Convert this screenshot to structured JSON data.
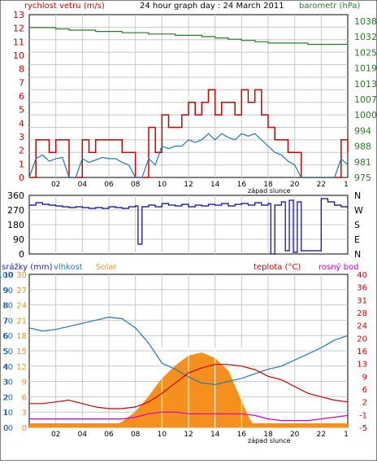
{
  "title": "24 hour graph day : 24 March 2011",
  "colors": {
    "wind": "#cc0000",
    "wind_avg": "#1e78b4",
    "baro": "#2a7a2a",
    "dir": "#0000aa",
    "humidity": "#1e78b4",
    "solar": "#f5901e",
    "temp": "#cc0000",
    "dew": "#cc00cc",
    "rain": "#2222aa"
  },
  "chart_data": [
    {
      "type": "line",
      "title": "24 hour graph day : 24 March 2011",
      "xlabel": "",
      "x_ticks": [
        "02",
        "04",
        "06",
        "08",
        "10",
        "12",
        "14",
        "16",
        "18",
        "20",
        "22"
      ],
      "x_start_label": "1",
      "annotation": "západ slunce",
      "left_axis": {
        "label": "rychlost vetru (m/s)",
        "ticks": [
          "0",
          "1",
          "2",
          "3",
          "4",
          "5",
          "6",
          "7",
          "8",
          "10",
          "11",
          "12",
          "13"
        ],
        "ylim": [
          0,
          13
        ]
      },
      "right_axis": {
        "label": "barometr (hPa)",
        "ticks": [
          "975",
          "981",
          "988",
          "994",
          "1000",
          "1007",
          "1013",
          "1019",
          "1025",
          "1032",
          "1038"
        ],
        "ylim": [
          975,
          1038
        ]
      },
      "grid": true,
      "series": [
        {
          "name": "gust",
          "axis": "left",
          "x": [
            0,
            0.5,
            1,
            1.5,
            2,
            2.5,
            3,
            3.5,
            4,
            4.5,
            5,
            5.5,
            6,
            6.5,
            7,
            7.5,
            8,
            8.5,
            9,
            9.5,
            10,
            10.5,
            11,
            11.5,
            12,
            12.5,
            13,
            13.5,
            14,
            14.5,
            15,
            15.5,
            16,
            16.5,
            17,
            17.5,
            18,
            18.5,
            19,
            19.5,
            20,
            20.5,
            21,
            21.5,
            22,
            22.5,
            23,
            23.5,
            24
          ],
          "values": [
            0,
            3,
            3,
            2,
            3,
            3,
            0,
            0,
            3,
            2,
            3,
            3,
            3,
            3,
            2,
            2,
            0,
            0,
            4,
            2,
            5,
            4,
            4,
            5,
            6,
            5,
            6,
            7,
            5,
            6,
            6,
            5,
            7,
            6,
            7,
            5,
            4,
            3,
            3,
            2,
            2,
            0,
            0,
            0,
            0,
            0,
            0,
            3,
            2
          ]
        },
        {
          "name": "average",
          "axis": "left",
          "x": [
            0,
            0.5,
            1,
            1.5,
            2,
            2.5,
            3,
            3.5,
            4,
            4.5,
            5,
            5.5,
            6,
            6.5,
            7,
            7.5,
            8,
            8.5,
            9,
            9.5,
            10,
            10.5,
            11,
            11.5,
            12,
            12.5,
            13,
            13.5,
            14,
            14.5,
            15,
            15.5,
            16,
            16.5,
            17,
            17.5,
            18,
            18.5,
            19,
            19.5,
            20,
            20.5,
            21,
            21.5,
            22,
            22.5,
            23,
            23.5,
            24
          ],
          "values": [
            0,
            1.5,
            1.8,
            1.3,
            1.5,
            1.6,
            0,
            0,
            1.5,
            1.2,
            1.4,
            1.6,
            1.5,
            1.5,
            1.2,
            1,
            0,
            0,
            1.5,
            1,
            2.5,
            2.3,
            2.5,
            2.5,
            3,
            2.8,
            3,
            3.5,
            3,
            3.5,
            3.2,
            3,
            3.5,
            3.3,
            3.5,
            3,
            2.5,
            2,
            1.8,
            1.3,
            1,
            0,
            0,
            0,
            0,
            0,
            0,
            1.5,
            1
          ]
        },
        {
          "name": "barometer",
          "axis": "right",
          "x": [
            0,
            1,
            2,
            3,
            4,
            5,
            6,
            7,
            8,
            9,
            10,
            11,
            12,
            13,
            14,
            15,
            16,
            17,
            18,
            19,
            20,
            21,
            22,
            23,
            24
          ],
          "values": [
            1033,
            1033,
            1032.5,
            1032,
            1032,
            1031.5,
            1031.5,
            1031,
            1031,
            1030.5,
            1030.5,
            1030,
            1030,
            1029.5,
            1029,
            1028.5,
            1028,
            1027.5,
            1027,
            1027,
            1027,
            1026.5,
            1026.5,
            1026.5,
            1026
          ]
        }
      ]
    },
    {
      "type": "line",
      "left_axis": {
        "ticks": [
          "360",
          "270",
          "180",
          "90",
          "0"
        ],
        "ylim": [
          0,
          360
        ]
      },
      "right_axis": {
        "ticks": [
          "N",
          "W",
          "S",
          "E",
          "N"
        ]
      },
      "x_ticks": [],
      "grid": true,
      "series": [
        {
          "name": "wind direction",
          "x": [
            0,
            0.5,
            1,
            1.5,
            2,
            2.5,
            3,
            3.5,
            4,
            4.5,
            5,
            5.5,
            6,
            6.5,
            7,
            7.5,
            8,
            8.2,
            8.5,
            9,
            9.5,
            10,
            10.5,
            11,
            11.5,
            12,
            12.5,
            13,
            13.5,
            14,
            14.5,
            15,
            15.5,
            16,
            16.5,
            17,
            17.5,
            18,
            18.2,
            18.5,
            19,
            19.3,
            19.6,
            19.9,
            20.2,
            20.5,
            21,
            21.5,
            22,
            22.5,
            23,
            23.5,
            24
          ],
          "values": [
            300,
            315,
            305,
            300,
            295,
            290,
            285,
            290,
            285,
            280,
            285,
            280,
            290,
            285,
            280,
            290,
            295,
            60,
            290,
            300,
            290,
            310,
            300,
            295,
            305,
            290,
            300,
            295,
            305,
            300,
            310,
            295,
            305,
            310,
            300,
            315,
            300,
            310,
            0,
            300,
            320,
            20,
            330,
            10,
            320,
            20,
            20,
            20,
            340,
            320,
            300,
            290,
            280
          ]
        }
      ]
    },
    {
      "type": "area",
      "x_ticks": [
        "02",
        "04",
        "06",
        "08",
        "10",
        "12",
        "14",
        "16",
        "18",
        "20",
        "22"
      ],
      "x_start_label": "1",
      "annotation": "západ slunce",
      "legend": [
        "srážky (mm)",
        "vlhkost",
        "Solar",
        "teplota (°C)",
        "rosný bod"
      ],
      "left_axes": [
        {
          "label": "srážky (mm)",
          "ticks": [
            "0",
            "1",
            "2",
            "3",
            "4",
            "5",
            "6",
            "7",
            "8",
            "9",
            "10"
          ],
          "ylim": [
            0,
            10
          ]
        },
        {
          "label": "vlhkost",
          "ticks": [
            "0",
            "10",
            "20",
            "30",
            "40",
            "50",
            "60",
            "70",
            "80",
            "90",
            "100"
          ],
          "ylim": [
            0,
            100
          ]
        },
        {
          "label": "Solar",
          "ticks": [
            "0",
            "3",
            "6",
            "9",
            "12",
            "15",
            "18",
            "21",
            "24",
            "27",
            "30"
          ],
          "ylim": [
            0,
            30
          ]
        }
      ],
      "right_axes": [
        {
          "label": "teplota (°C)",
          "ticks": [
            "-5",
            "-1",
            "2",
            "6",
            "9",
            "13",
            "16",
            "20",
            "24",
            "28",
            "31",
            "36",
            "40"
          ],
          "ylim": [
            -5,
            40
          ]
        },
        {
          "label": "rosný bod",
          "ticks": [
            "-5",
            "-2",
            "2",
            "6",
            "10",
            "13",
            "18",
            "22",
            "26",
            "30",
            "34",
            "36",
            "40"
          ],
          "ylim": [
            -5,
            40
          ]
        }
      ],
      "grid": true,
      "series": [
        {
          "name": "vlhkost",
          "axis": "humidity",
          "x": [
            0,
            1,
            2,
            3,
            4,
            5,
            6,
            7,
            8,
            9,
            10,
            11,
            12,
            13,
            14,
            15,
            16,
            17,
            18,
            19,
            20,
            21,
            22,
            23,
            24
          ],
          "values": [
            65,
            63,
            64,
            66,
            68,
            70,
            72,
            71,
            65,
            55,
            42,
            38,
            33,
            29,
            28,
            30,
            32,
            35,
            38,
            40,
            44,
            48,
            52,
            57,
            60
          ]
        },
        {
          "name": "Solar",
          "axis": "solar",
          "x": [
            0,
            6,
            7,
            8,
            9,
            10,
            11,
            12,
            13,
            14,
            15,
            16,
            16.5,
            17,
            24
          ],
          "values": [
            0,
            0,
            1,
            3,
            6,
            9.5,
            12,
            14,
            14.6,
            13.5,
            11,
            5,
            2,
            0,
            0
          ]
        },
        {
          "name": "teplota",
          "axis": "temperature",
          "x": [
            0,
            1,
            2,
            3,
            4,
            5,
            6,
            7,
            8,
            9,
            10,
            11,
            12,
            13,
            14,
            15,
            16,
            17,
            18,
            19,
            20,
            21,
            22,
            23,
            24
          ],
          "values": [
            2,
            2,
            2.5,
            3,
            2,
            1,
            0.5,
            0.5,
            1,
            2.5,
            5,
            8,
            11,
            12.5,
            13.5,
            13.5,
            13,
            12,
            10,
            9,
            7,
            5,
            4,
            3,
            2.5
          ]
        },
        {
          "name": "rosný bod",
          "axis": "dewpoint",
          "x": [
            0,
            1,
            2,
            3,
            4,
            5,
            6,
            7,
            8,
            9,
            10,
            11,
            12,
            13,
            14,
            15,
            16,
            17,
            18,
            19,
            20,
            21,
            22,
            23,
            24
          ],
          "values": [
            -2.5,
            -2.5,
            -2.5,
            -2.5,
            -2.5,
            -2.5,
            -2.5,
            -2.5,
            -2,
            -1,
            -0.5,
            -0.5,
            -1,
            -1,
            -1,
            -1,
            -1,
            -1.5,
            -2.5,
            -3,
            -3,
            -3,
            -2.5,
            -2,
            -1.5
          ]
        },
        {
          "name": "srážky",
          "axis": "rain",
          "x": [
            0,
            24
          ],
          "values": [
            0,
            0
          ]
        }
      ]
    }
  ]
}
